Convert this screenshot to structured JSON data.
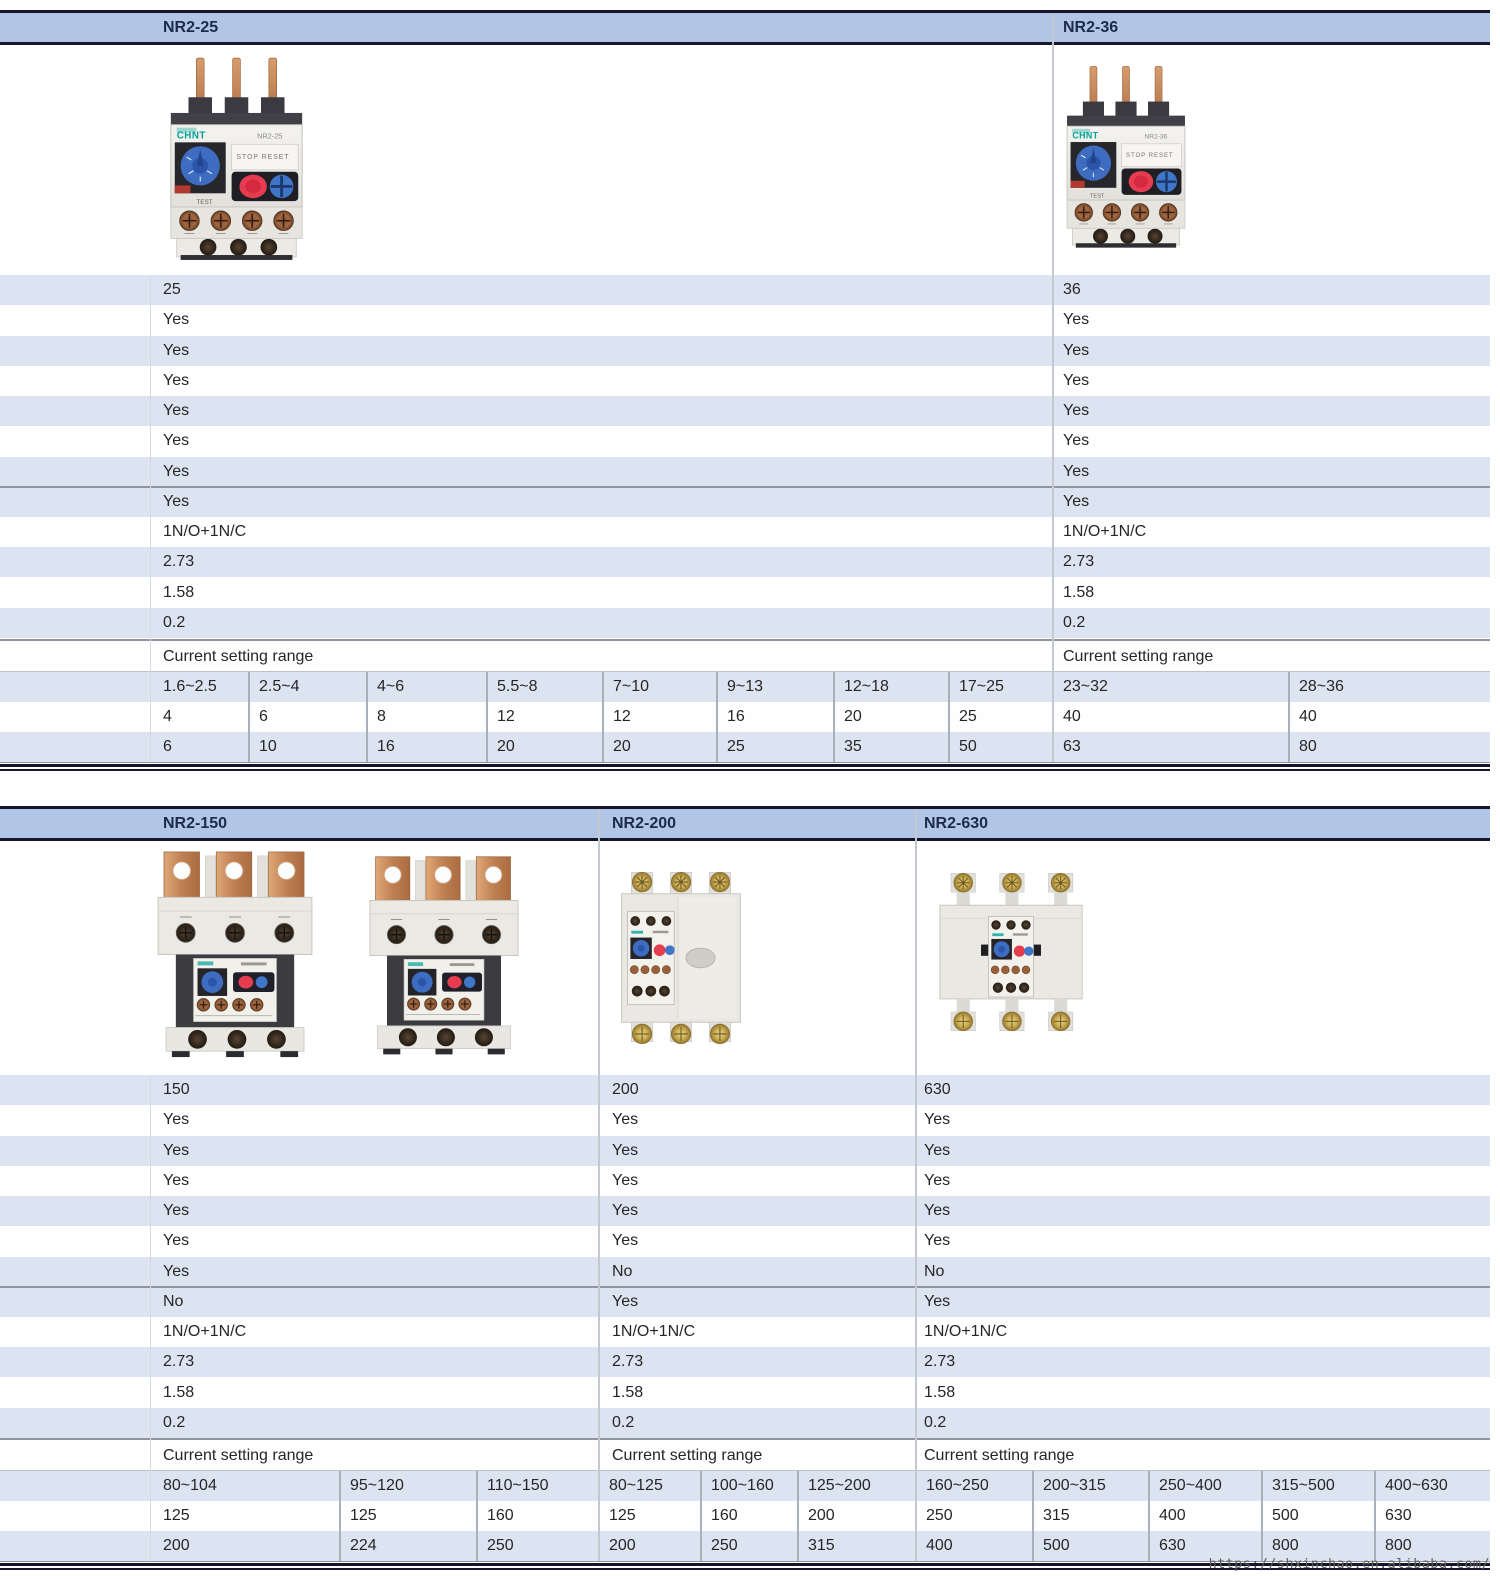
{
  "watermark": "https://shxinchao.en.alibaba.com/",
  "photos": {
    "brand": "CHNT",
    "stop_reset_label": "STOP RESET",
    "test_label": "TEST"
  },
  "tables": [
    {
      "columns": [
        {
          "model": "NR2-25",
          "specs": [
            "25",
            "Yes",
            "Yes",
            "Yes",
            "Yes",
            "Yes",
            "Yes",
            "Yes",
            "1N/O+1N/C",
            "2.73",
            "1.58",
            "0.2"
          ],
          "csr_label": "Current setting range",
          "ranges": [
            "1.6~2.5",
            "2.5~4",
            "4~6",
            "5.5~8",
            "7~10",
            "9~13",
            "12~18",
            "17~25"
          ],
          "rated1": [
            "4",
            "6",
            "8",
            "12",
            "12",
            "16",
            "20",
            "25"
          ],
          "rated2": [
            "6",
            "10",
            "16",
            "20",
            "20",
            "25",
            "35",
            "50"
          ]
        },
        {
          "model": "NR2-36",
          "specs": [
            "36",
            "Yes",
            "Yes",
            "Yes",
            "Yes",
            "Yes",
            "Yes",
            "Yes",
            "1N/O+1N/C",
            "2.73",
            "1.58",
            "0.2"
          ],
          "csr_label": "Current setting range",
          "ranges": [
            "23~32",
            "28~36"
          ],
          "rated1": [
            "40",
            "40"
          ],
          "rated2": [
            "63",
            "80"
          ]
        }
      ]
    },
    {
      "columns": [
        {
          "model": "NR2-150",
          "specs": [
            "150",
            "Yes",
            "Yes",
            "Yes",
            "Yes",
            "Yes",
            "Yes",
            "No",
            "1N/O+1N/C",
            "2.73",
            "1.58",
            "0.2"
          ],
          "csr_label": "Current setting range",
          "ranges": [
            "80~104",
            "95~120",
            "110~150"
          ],
          "rated1": [
            "125",
            "125",
            "160"
          ],
          "rated2": [
            "200",
            "224",
            "250"
          ]
        },
        {
          "model": "NR2-200",
          "specs": [
            "200",
            "Yes",
            "Yes",
            "Yes",
            "Yes",
            "Yes",
            "No",
            "Yes",
            "1N/O+1N/C",
            "2.73",
            "1.58",
            "0.2"
          ],
          "csr_label": "Current setting range",
          "ranges": [
            "80~125",
            "100~160",
            "125~200"
          ],
          "rated1": [
            "125",
            "160",
            "200"
          ],
          "rated2": [
            "200",
            "250",
            "315"
          ]
        },
        {
          "model": "NR2-630",
          "specs": [
            "630",
            "Yes",
            "Yes",
            "Yes",
            "Yes",
            "Yes",
            "No",
            "Yes",
            "1N/O+1N/C",
            "2.73",
            "1.58",
            "0.2"
          ],
          "csr_label": "Current setting range",
          "ranges": [
            "160~250",
            "200~315",
            "250~400",
            "315~500",
            "400~630"
          ],
          "rated1": [
            "250",
            "315",
            "400",
            "500",
            "630"
          ],
          "rated2": [
            "400",
            "500",
            "630",
            "800",
            "800"
          ]
        }
      ]
    }
  ]
}
